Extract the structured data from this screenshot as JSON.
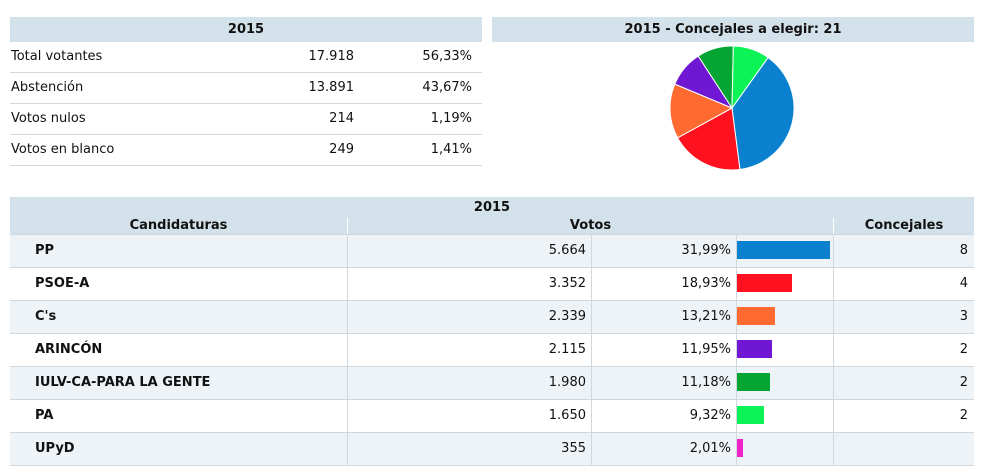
{
  "summary": {
    "title": "2015",
    "rows": [
      {
        "label": "Total votantes",
        "value": "17.918",
        "pct": "56,33%"
      },
      {
        "label": "Abstención",
        "value": "13.891",
        "pct": "43,67%"
      },
      {
        "label": "Votos nulos",
        "value": "214",
        "pct": "1,19%"
      },
      {
        "label": "Votos en blanco",
        "value": "249",
        "pct": "1,41%"
      }
    ]
  },
  "pie": {
    "title": "2015 - Concejales a elegir: 21"
  },
  "results": {
    "title": "2015",
    "col_candidaturas": "Candidaturas",
    "col_votos": "Votos",
    "col_concejales": "Concejales"
  },
  "chart_data": {
    "type": "table",
    "series": [
      {
        "party": "PP",
        "votes": "5.664",
        "votes_value": 5664,
        "pct": "31,99%",
        "pct_value": 31.99,
        "seats": "8",
        "seats_value": 8,
        "color": "#0a80ce"
      },
      {
        "party": "PSOE-A",
        "votes": "3.352",
        "votes_value": 3352,
        "pct": "18,93%",
        "pct_value": 18.93,
        "seats": "4",
        "seats_value": 4,
        "color": "#ff1120"
      },
      {
        "party": "C's",
        "votes": "2.339",
        "votes_value": 2339,
        "pct": "13,21%",
        "pct_value": 13.21,
        "seats": "3",
        "seats_value": 3,
        "color": "#ff6a30"
      },
      {
        "party": "ARINCÓN",
        "votes": "2.115",
        "votes_value": 2115,
        "pct": "11,95%",
        "pct_value": 11.95,
        "seats": "2",
        "seats_value": 2,
        "color": "#6f17d3"
      },
      {
        "party": "IULV-CA-PARA LA GENTE",
        "votes": "1.980",
        "votes_value": 1980,
        "pct": "11,18%",
        "pct_value": 11.18,
        "seats": "2",
        "seats_value": 2,
        "color": "#04a532"
      },
      {
        "party": "PA",
        "votes": "1.650",
        "votes_value": 1650,
        "pct": "9,32%",
        "pct_value": 9.32,
        "seats": "2",
        "seats_value": 2,
        "color": "#0bf354"
      },
      {
        "party": "UPyD",
        "votes": "355",
        "votes_value": 355,
        "pct": "2,01%",
        "pct_value": 2.01,
        "seats": "",
        "seats_value": 0,
        "color": "#ee23c8"
      }
    ],
    "pie_slices": [
      {
        "party": "PP",
        "seats": 8,
        "color": "#0a80ce"
      },
      {
        "party": "PSOE-A",
        "seats": 4,
        "color": "#ff1120"
      },
      {
        "party": "C's",
        "seats": 3,
        "color": "#ff6a30"
      },
      {
        "party": "ARINCÓN",
        "seats": 2,
        "color": "#6f17d3"
      },
      {
        "party": "IULV-CA-PARA LA GENTE",
        "seats": 2,
        "color": "#04a532"
      },
      {
        "party": "PA",
        "seats": 2,
        "color": "#0bf354"
      }
    ]
  }
}
